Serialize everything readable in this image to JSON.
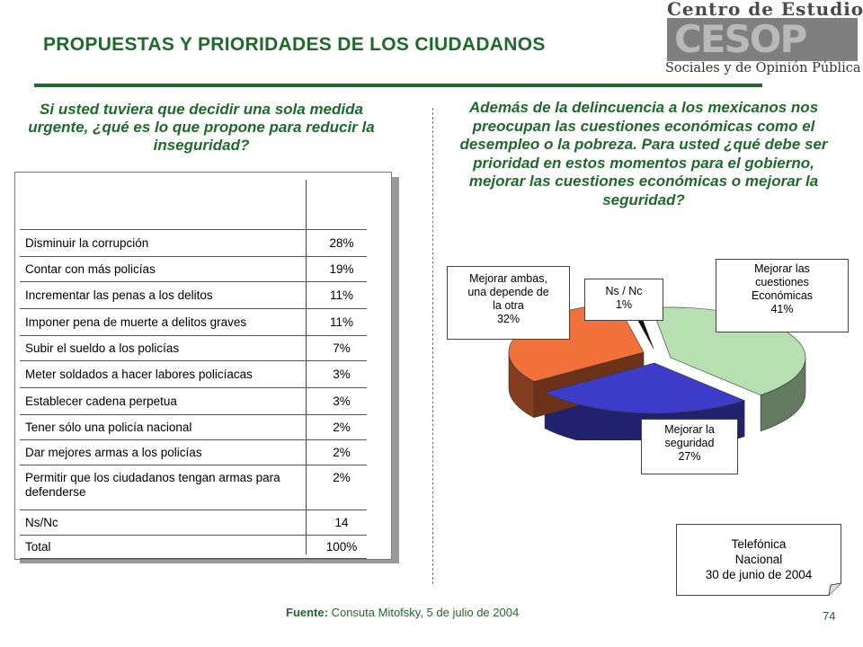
{
  "title": "PROPUESTAS Y PRIORIDADES DE LOS CIUDADANOS",
  "logo": {
    "line1": "Centro de Estudios",
    "word": "CESOP",
    "line3": "Sociales y de Opinión Pública"
  },
  "left_question": "Si usted tuviera que decidir una sola medida urgente, ¿qué es lo que propone para reducir la inseguridad?",
  "right_question": "Además de la delincuencia a los mexicanos nos preocupan las cuestiones económicas como el desempleo o la pobreza. Para usted ¿qué debe ser prioridad en estos momentos para el gobierno, mejorar las cuestiones económicas o mejorar la seguridad?",
  "chart_data": [
    {
      "type": "table",
      "columns": [
        "",
        ""
      ],
      "rows": [
        [
          "Disminuir la corrupción",
          "28%"
        ],
        [
          "Contar con más policías",
          "19%"
        ],
        [
          "Incrementar las penas a los delitos",
          "11%"
        ],
        [
          "Imponer pena de muerte a delitos graves",
          "11%"
        ],
        [
          "Subir el sueldo a los policías",
          "7%"
        ],
        [
          "Meter soldados a hacer labores policíacas",
          "3%"
        ],
        [
          "Establecer cadena perpetua",
          "3%"
        ],
        [
          "Tener sólo una policía nacional",
          "2%"
        ],
        [
          "Dar mejores armas a los policías",
          "2%"
        ],
        [
          "Permitir que los ciudadanos tengan armas para defenderse",
          "2%"
        ],
        [
          "Ns/Nc",
          "14"
        ],
        [
          "Total",
          "100%"
        ]
      ]
    },
    {
      "type": "pie",
      "slices": [
        {
          "label": "Mejorar las cuestiones Económicas",
          "value": 41,
          "color": "#b7e0b0"
        },
        {
          "label": "Mejorar la seguridad",
          "value": 27,
          "color": "#3c3cc8"
        },
        {
          "label": "Mejorar ambas, una depende de la otra",
          "value": 32,
          "color": "#f2703a"
        },
        {
          "label": "Ns / Nc",
          "value": 1,
          "color": "#111111"
        }
      ]
    }
  ],
  "pie_labels": {
    "ambas": [
      "Mejorar ambas,",
      "una depende de",
      "la otra",
      "32%"
    ],
    "nsnc": [
      "Ns / Nc",
      "1%"
    ],
    "econ": [
      "Mejorar las",
      "cuestiones",
      "Económicas",
      "41%"
    ],
    "seg": [
      "Mejorar la",
      "seguridad",
      "27%"
    ]
  },
  "note": [
    "Telefónica",
    "Nacional",
    "30 de junio de 2004"
  ],
  "source": {
    "label": "Fuente:",
    "text": "Consuta Mitofsky, 5 de julio de 2004"
  },
  "page_number": "74"
}
